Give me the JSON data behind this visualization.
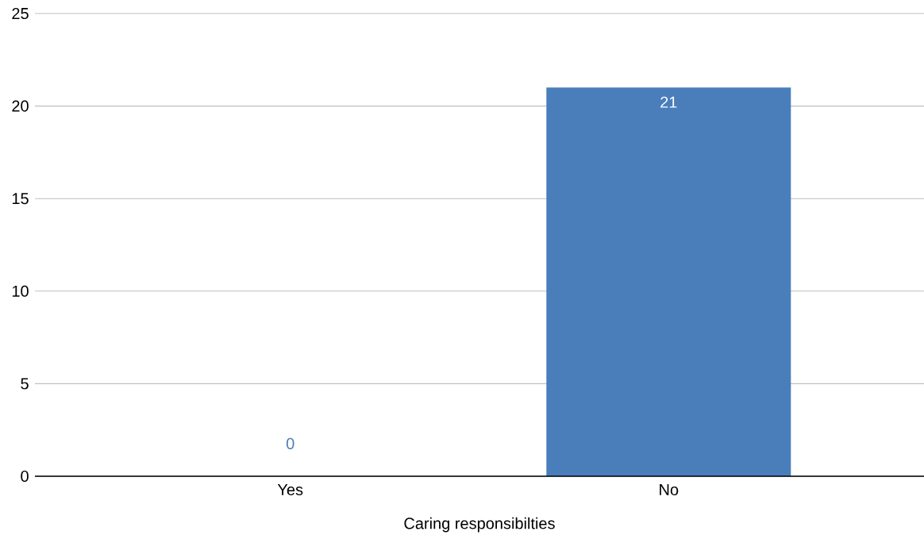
{
  "chart_data": {
    "type": "bar",
    "xlabel": "Caring responsibilties",
    "categories": [
      "Yes",
      "No"
    ],
    "values": [
      0,
      21
    ],
    "color": "#4a7ebb",
    "ylim": [
      0,
      25
    ],
    "yticks": [
      0,
      5,
      10,
      15,
      20,
      25
    ],
    "grid": "y",
    "data_labels": true
  }
}
